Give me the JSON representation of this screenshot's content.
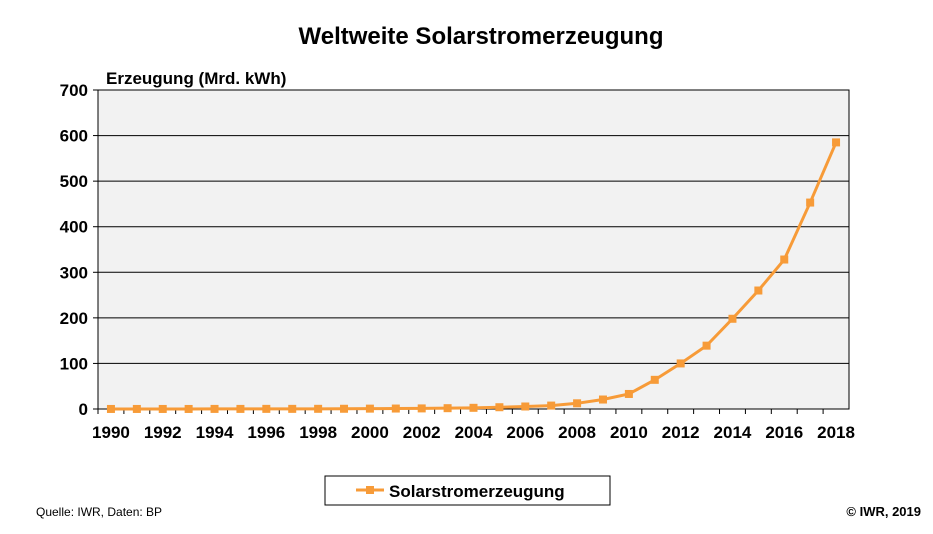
{
  "chart_data": {
    "type": "line",
    "title": "Weltweite Solarstromerzeugung",
    "ylabel": "Erzeugung (Mrd. kWh)",
    "xlabel": "",
    "ylim": [
      0,
      700
    ],
    "yticks": [
      0,
      100,
      200,
      300,
      400,
      500,
      600,
      700
    ],
    "xticks": [
      1990,
      1992,
      1994,
      1996,
      1998,
      2000,
      2002,
      2004,
      2006,
      2008,
      2010,
      2012,
      2014,
      2016,
      2018
    ],
    "grid": true,
    "legend_position": "bottom",
    "x": [
      1990,
      1991,
      1992,
      1993,
      1994,
      1995,
      1996,
      1997,
      1998,
      1999,
      2000,
      2001,
      2002,
      2003,
      2004,
      2005,
      2006,
      2007,
      2008,
      2009,
      2010,
      2011,
      2012,
      2013,
      2014,
      2015,
      2016,
      2017,
      2018
    ],
    "series": [
      {
        "name": "Solarstromerzeugung",
        "color": "#F79B38",
        "values": [
          0.1,
          0.1,
          0.1,
          0.1,
          0.2,
          0.2,
          0.3,
          0.3,
          0.4,
          0.5,
          0.8,
          1.0,
          1.3,
          1.8,
          2.6,
          3.9,
          5.5,
          7.5,
          12.5,
          20.8,
          33,
          64,
          100,
          139,
          198,
          260,
          328,
          453,
          585
        ]
      }
    ]
  },
  "footer": {
    "source": "Quelle: IWR, Daten: BP",
    "copyright": "© IWR, 2019"
  }
}
